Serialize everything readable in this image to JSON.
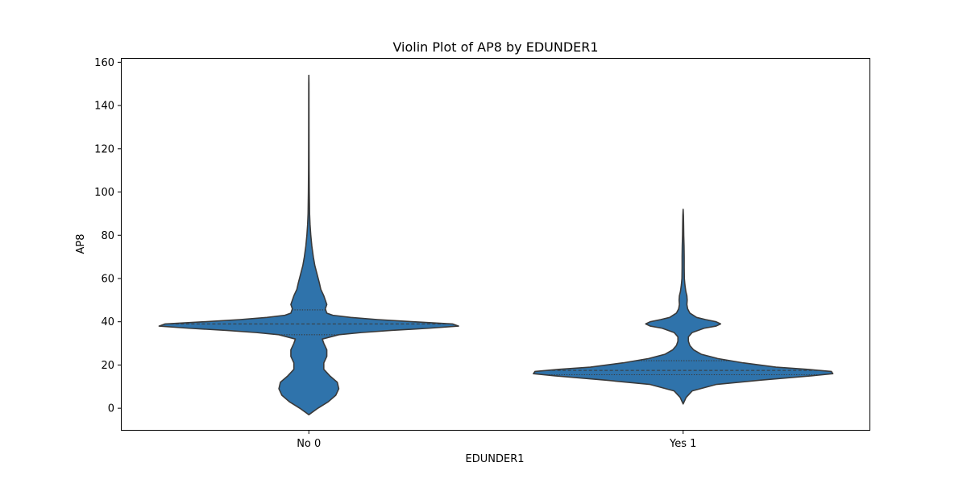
{
  "chart_data": {
    "type": "violin",
    "title": "Violin Plot of AP8 by EDUNDER1",
    "xlabel": "EDUNDER1",
    "ylabel": "AP8",
    "categories": [
      "No 0",
      "Yes 1"
    ],
    "ylim": [
      -10,
      162
    ],
    "yticks": [
      0,
      20,
      40,
      60,
      80,
      100,
      120,
      140,
      160
    ],
    "grid": false,
    "color": "#2f73ab",
    "edge_color": "#3a3a3a",
    "series": [
      {
        "category": "No 0",
        "quartiles": [
          34,
          39,
          45.5
        ],
        "profile": [
          [
            -3,
            0.0
          ],
          [
            0,
            0.06
          ],
          [
            3,
            0.13
          ],
          [
            6,
            0.18
          ],
          [
            9,
            0.2
          ],
          [
            12,
            0.19
          ],
          [
            15,
            0.14
          ],
          [
            18,
            0.1
          ],
          [
            21,
            0.1
          ],
          [
            24,
            0.12
          ],
          [
            27,
            0.12
          ],
          [
            30,
            0.1
          ],
          [
            32,
            0.09
          ],
          [
            34,
            0.2
          ],
          [
            35,
            0.35
          ],
          [
            36,
            0.55
          ],
          [
            37,
            0.8
          ],
          [
            38,
            1.0
          ],
          [
            39,
            0.96
          ],
          [
            40,
            0.7
          ],
          [
            41,
            0.46
          ],
          [
            42,
            0.28
          ],
          [
            43,
            0.16
          ],
          [
            44,
            0.12
          ],
          [
            46,
            0.11
          ],
          [
            48,
            0.12
          ],
          [
            50,
            0.11
          ],
          [
            52,
            0.1
          ],
          [
            55,
            0.08
          ],
          [
            58,
            0.07
          ],
          [
            62,
            0.055
          ],
          [
            66,
            0.04
          ],
          [
            70,
            0.03
          ],
          [
            75,
            0.02
          ],
          [
            80,
            0.013
          ],
          [
            85,
            0.008
          ],
          [
            90,
            0.005
          ],
          [
            100,
            0.003
          ],
          [
            110,
            0.002
          ],
          [
            120,
            0.0015
          ],
          [
            130,
            0.0012
          ],
          [
            140,
            0.001
          ],
          [
            150,
            0.0008
          ],
          [
            154,
            0.0
          ]
        ]
      },
      {
        "category": "Yes 1",
        "quartiles": [
          15.5,
          17.5,
          22
        ],
        "profile": [
          [
            2,
            0.0
          ],
          [
            5,
            0.02
          ],
          [
            8,
            0.06
          ],
          [
            11,
            0.22
          ],
          [
            13,
            0.52
          ],
          [
            15,
            0.86
          ],
          [
            16,
            1.0
          ],
          [
            17,
            0.99
          ],
          [
            18,
            0.83
          ],
          [
            19,
            0.62
          ],
          [
            21,
            0.4
          ],
          [
            23,
            0.23
          ],
          [
            25,
            0.12
          ],
          [
            27,
            0.07
          ],
          [
            29,
            0.045
          ],
          [
            31,
            0.035
          ],
          [
            33,
            0.035
          ],
          [
            35,
            0.06
          ],
          [
            37,
            0.14
          ],
          [
            38,
            0.22
          ],
          [
            39,
            0.25
          ],
          [
            40,
            0.22
          ],
          [
            41,
            0.15
          ],
          [
            42,
            0.09
          ],
          [
            44,
            0.045
          ],
          [
            46,
            0.03
          ],
          [
            48,
            0.025
          ],
          [
            50,
            0.027
          ],
          [
            52,
            0.025
          ],
          [
            54,
            0.018
          ],
          [
            57,
            0.012
          ],
          [
            60,
            0.008
          ],
          [
            65,
            0.007
          ],
          [
            70,
            0.007
          ],
          [
            75,
            0.006
          ],
          [
            80,
            0.004
          ],
          [
            85,
            0.003
          ],
          [
            89,
            0.002
          ],
          [
            92,
            0.0
          ]
        ]
      }
    ]
  }
}
